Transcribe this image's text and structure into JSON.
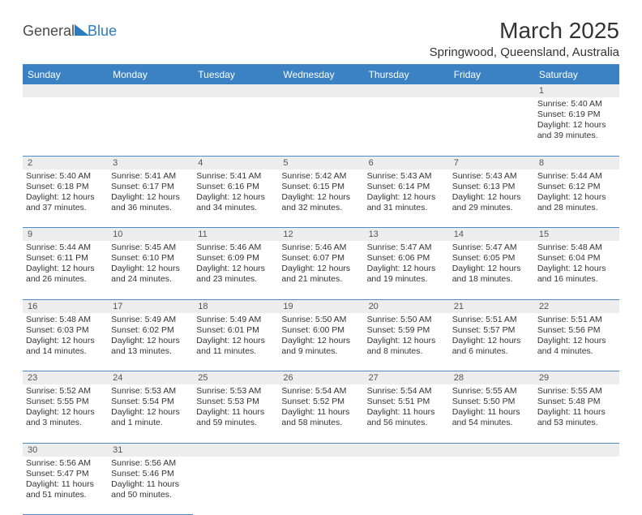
{
  "logo": {
    "text1": "General",
    "text2": "Blue"
  },
  "title": "March 2025",
  "subtitle": "Springwood, Queensland, Australia",
  "colors": {
    "header_bg": "#3b82c4",
    "header_text": "#ffffff",
    "rule": "#508bc8",
    "daynum_bg": "#ededed",
    "logo_accent": "#2b7bbf"
  },
  "days_of_week": [
    "Sunday",
    "Monday",
    "Tuesday",
    "Wednesday",
    "Thursday",
    "Friday",
    "Saturday"
  ],
  "weeks": [
    {
      "nums": [
        "",
        "",
        "",
        "",
        "",
        "",
        "1"
      ],
      "cells": [
        null,
        null,
        null,
        null,
        null,
        null,
        {
          "sunrise": "5:40 AM",
          "sunset": "6:19 PM",
          "daylight": "12 hours and 39 minutes."
        }
      ]
    },
    {
      "nums": [
        "2",
        "3",
        "4",
        "5",
        "6",
        "7",
        "8"
      ],
      "cells": [
        {
          "sunrise": "5:40 AM",
          "sunset": "6:18 PM",
          "daylight": "12 hours and 37 minutes."
        },
        {
          "sunrise": "5:41 AM",
          "sunset": "6:17 PM",
          "daylight": "12 hours and 36 minutes."
        },
        {
          "sunrise": "5:41 AM",
          "sunset": "6:16 PM",
          "daylight": "12 hours and 34 minutes."
        },
        {
          "sunrise": "5:42 AM",
          "sunset": "6:15 PM",
          "daylight": "12 hours and 32 minutes."
        },
        {
          "sunrise": "5:43 AM",
          "sunset": "6:14 PM",
          "daylight": "12 hours and 31 minutes."
        },
        {
          "sunrise": "5:43 AM",
          "sunset": "6:13 PM",
          "daylight": "12 hours and 29 minutes."
        },
        {
          "sunrise": "5:44 AM",
          "sunset": "6:12 PM",
          "daylight": "12 hours and 28 minutes."
        }
      ]
    },
    {
      "nums": [
        "9",
        "10",
        "11",
        "12",
        "13",
        "14",
        "15"
      ],
      "cells": [
        {
          "sunrise": "5:44 AM",
          "sunset": "6:11 PM",
          "daylight": "12 hours and 26 minutes."
        },
        {
          "sunrise": "5:45 AM",
          "sunset": "6:10 PM",
          "daylight": "12 hours and 24 minutes."
        },
        {
          "sunrise": "5:46 AM",
          "sunset": "6:09 PM",
          "daylight": "12 hours and 23 minutes."
        },
        {
          "sunrise": "5:46 AM",
          "sunset": "6:07 PM",
          "daylight": "12 hours and 21 minutes."
        },
        {
          "sunrise": "5:47 AM",
          "sunset": "6:06 PM",
          "daylight": "12 hours and 19 minutes."
        },
        {
          "sunrise": "5:47 AM",
          "sunset": "6:05 PM",
          "daylight": "12 hours and 18 minutes."
        },
        {
          "sunrise": "5:48 AM",
          "sunset": "6:04 PM",
          "daylight": "12 hours and 16 minutes."
        }
      ]
    },
    {
      "nums": [
        "16",
        "17",
        "18",
        "19",
        "20",
        "21",
        "22"
      ],
      "cells": [
        {
          "sunrise": "5:48 AM",
          "sunset": "6:03 PM",
          "daylight": "12 hours and 14 minutes."
        },
        {
          "sunrise": "5:49 AM",
          "sunset": "6:02 PM",
          "daylight": "12 hours and 13 minutes."
        },
        {
          "sunrise": "5:49 AM",
          "sunset": "6:01 PM",
          "daylight": "12 hours and 11 minutes."
        },
        {
          "sunrise": "5:50 AM",
          "sunset": "6:00 PM",
          "daylight": "12 hours and 9 minutes."
        },
        {
          "sunrise": "5:50 AM",
          "sunset": "5:59 PM",
          "daylight": "12 hours and 8 minutes."
        },
        {
          "sunrise": "5:51 AM",
          "sunset": "5:57 PM",
          "daylight": "12 hours and 6 minutes."
        },
        {
          "sunrise": "5:51 AM",
          "sunset": "5:56 PM",
          "daylight": "12 hours and 4 minutes."
        }
      ]
    },
    {
      "nums": [
        "23",
        "24",
        "25",
        "26",
        "27",
        "28",
        "29"
      ],
      "cells": [
        {
          "sunrise": "5:52 AM",
          "sunset": "5:55 PM",
          "daylight": "12 hours and 3 minutes."
        },
        {
          "sunrise": "5:53 AM",
          "sunset": "5:54 PM",
          "daylight": "12 hours and 1 minute."
        },
        {
          "sunrise": "5:53 AM",
          "sunset": "5:53 PM",
          "daylight": "11 hours and 59 minutes."
        },
        {
          "sunrise": "5:54 AM",
          "sunset": "5:52 PM",
          "daylight": "11 hours and 58 minutes."
        },
        {
          "sunrise": "5:54 AM",
          "sunset": "5:51 PM",
          "daylight": "11 hours and 56 minutes."
        },
        {
          "sunrise": "5:55 AM",
          "sunset": "5:50 PM",
          "daylight": "11 hours and 54 minutes."
        },
        {
          "sunrise": "5:55 AM",
          "sunset": "5:48 PM",
          "daylight": "11 hours and 53 minutes."
        }
      ]
    },
    {
      "nums": [
        "30",
        "31",
        "",
        "",
        "",
        "",
        ""
      ],
      "cells": [
        {
          "sunrise": "5:56 AM",
          "sunset": "5:47 PM",
          "daylight": "11 hours and 51 minutes."
        },
        {
          "sunrise": "5:56 AM",
          "sunset": "5:46 PM",
          "daylight": "11 hours and 50 minutes."
        },
        null,
        null,
        null,
        null,
        null
      ]
    }
  ],
  "labels": {
    "sunrise": "Sunrise: ",
    "sunset": "Sunset: ",
    "daylight": "Daylight: "
  }
}
